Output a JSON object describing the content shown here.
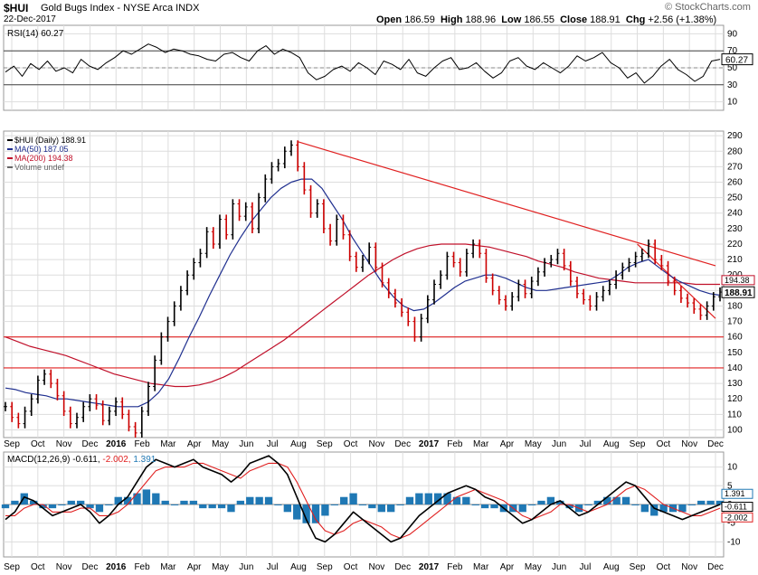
{
  "header": {
    "symbol": "$HUI",
    "name": "Gold Bugs Index - NYSE Arca INDX",
    "date": "22-Dec-2017",
    "source": "© StockCharts.com",
    "ohlc": [
      {
        "label": "Open",
        "value": "186.59"
      },
      {
        "label": "High",
        "value": "188.96"
      },
      {
        "label": "Low",
        "value": "186.55"
      },
      {
        "label": "Close",
        "value": "188.91"
      },
      {
        "label": "Chg",
        "value": "+2.56 (+1.38%)"
      }
    ]
  },
  "colors": {
    "price": "#000000",
    "down": "#cc0000",
    "ma50": "#1f2f8f",
    "ma200": "#c0102a",
    "trend": "#e02020",
    "macd_hist": "#1f78b4",
    "grid": "#dddddd"
  },
  "chart_data": [
    {
      "type": "line",
      "panel": "rsi",
      "title": "RSI(14) 60.27",
      "last_value_label": "60.27",
      "ylim": [
        0,
        100
      ],
      "yticks": [
        10,
        30,
        50,
        70,
        90
      ],
      "levels": [
        30,
        50,
        70
      ],
      "x_labels": [
        "Sep",
        "Oct",
        "Nov",
        "Dec",
        "2016",
        "Feb",
        "Mar",
        "Apr",
        "May",
        "Jun",
        "Jul",
        "Aug",
        "Sep",
        "Oct",
        "Nov",
        "Dec",
        "2017",
        "Feb",
        "Mar",
        "Apr",
        "May",
        "Jun",
        "Jul",
        "Aug",
        "Sep",
        "Oct",
        "Nov",
        "Dec"
      ],
      "series": [
        {
          "values": [
            45,
            52,
            40,
            55,
            48,
            58,
            46,
            50,
            44,
            60,
            52,
            48,
            56,
            62,
            70,
            66,
            72,
            78,
            74,
            68,
            72,
            70,
            66,
            64,
            60,
            58,
            66,
            68,
            62,
            58,
            70,
            76,
            66,
            72,
            68,
            62,
            44,
            36,
            40,
            48,
            52,
            46,
            56,
            50,
            42,
            58,
            54,
            48,
            60,
            44,
            40,
            50,
            58,
            62,
            48,
            50,
            56,
            46,
            38,
            44,
            58,
            62,
            52,
            48,
            56,
            50,
            44,
            52,
            64,
            58,
            62,
            68,
            56,
            50,
            38,
            44,
            32,
            40,
            52,
            60,
            48,
            42,
            34,
            40,
            58,
            60
          ]
        }
      ]
    },
    {
      "type": "bar",
      "panel": "price",
      "title": "$HUI (Daily) 188.91",
      "legend": [
        "$HUI (Daily) 188.91",
        "MA(50) 187.05",
        "MA(200) 194.38",
        "Volume undef"
      ],
      "ylim": [
        95,
        293
      ],
      "yticks": [
        100,
        110,
        120,
        130,
        140,
        150,
        160,
        170,
        180,
        190,
        200,
        210,
        220,
        230,
        240,
        250,
        260,
        270,
        280,
        290
      ],
      "x_labels": [
        "Sep",
        "Oct",
        "Nov",
        "Dec",
        "2016",
        "Feb",
        "Mar",
        "Apr",
        "May",
        "Jun",
        "Jul",
        "Aug",
        "Sep",
        "Oct",
        "Nov",
        "Dec",
        "2017",
        "Feb",
        "Mar",
        "Apr",
        "May",
        "Jun",
        "Jul",
        "Aug",
        "Sep",
        "Oct",
        "Nov",
        "Dec"
      ],
      "price_labels": [
        "194.38",
        "188.91"
      ],
      "series": [
        {
          "name": "$HUI (Daily) 188.91",
          "values": [
            115,
            108,
            104,
            112,
            120,
            132,
            136,
            130,
            122,
            112,
            104,
            108,
            115,
            120,
            116,
            106,
            112,
            118,
            110,
            102,
            98,
            112,
            128,
            145,
            160,
            170,
            180,
            190,
            200,
            208,
            214,
            228,
            220,
            236,
            226,
            246,
            238,
            244,
            230,
            250,
            262,
            270,
            272,
            280,
            284,
            270,
            255,
            240,
            246,
            230,
            222,
            236,
            226,
            212,
            205,
            210,
            218,
            205,
            195,
            188,
            182,
            176,
            170,
            160,
            172,
            184,
            194,
            200,
            212,
            208,
            202,
            214,
            220,
            214,
            198,
            190,
            184,
            180,
            186,
            194,
            188,
            196,
            202,
            208,
            210,
            214,
            206,
            196,
            188,
            184,
            180,
            186,
            190,
            194,
            200,
            205,
            208,
            212,
            214,
            220,
            210,
            206,
            196,
            190,
            185,
            182,
            178,
            174,
            180,
            186,
            189
          ]
        },
        {
          "name": "MA(50) 187.05",
          "values": [
            127,
            126,
            124,
            123,
            122,
            120,
            120,
            119,
            118,
            117,
            116,
            115,
            115,
            115,
            118,
            124,
            133,
            146,
            160,
            173,
            187,
            200,
            213,
            224,
            234,
            242,
            250,
            256,
            260,
            262,
            262,
            256,
            246,
            236,
            224,
            214,
            204,
            194,
            186,
            180,
            177,
            178,
            182,
            187,
            192,
            196,
            198,
            200,
            200,
            198,
            195,
            192,
            190,
            190,
            191,
            192,
            193,
            194,
            195,
            196,
            200,
            205,
            208,
            210,
            205,
            200,
            196,
            193,
            190,
            188,
            187
          ]
        },
        {
          "name": "MA(200) 194.38",
          "values": [
            160,
            157,
            154,
            152,
            150,
            148,
            145,
            142,
            139,
            136,
            134,
            132,
            130,
            129,
            128,
            128,
            129,
            131,
            134,
            138,
            143,
            148,
            153,
            158,
            164,
            170,
            176,
            182,
            188,
            194,
            200,
            205,
            210,
            214,
            217,
            219,
            220,
            220,
            220,
            219,
            218,
            216,
            214,
            212,
            209,
            207,
            205,
            202,
            200,
            198,
            197,
            196,
            195,
            195,
            195,
            195,
            195,
            194,
            194,
            194
          ]
        }
      ],
      "trendlines": [
        {
          "from": [
            "Aug 2016",
            286
          ],
          "to": [
            "Dec 2017",
            206
          ]
        },
        {
          "from": [
            "Sep 2017",
            220
          ],
          "to": [
            "Dec 2017",
            172
          ]
        }
      ],
      "support_levels": [
        160,
        140
      ]
    },
    {
      "type": "line",
      "panel": "macd",
      "title": "MACD(12,26,9)",
      "values_label": [
        "-0.611",
        "-2.002",
        "1.391"
      ],
      "last_value_labels": [
        "1.391",
        "-0.611",
        "-2.002"
      ],
      "ylim": [
        -14,
        14
      ],
      "yticks": [
        -10,
        -5,
        0,
        5,
        10
      ],
      "x_labels": [
        "Sep",
        "Oct",
        "Nov",
        "Dec",
        "2016",
        "Feb",
        "Mar",
        "Apr",
        "May",
        "Jun",
        "Jul",
        "Aug",
        "Sep",
        "Oct",
        "Nov",
        "Dec",
        "2017",
        "Feb",
        "Mar",
        "Apr",
        "May",
        "Jun",
        "Jul",
        "Aug",
        "Sep",
        "Oct",
        "Nov",
        "Dec"
      ],
      "series": [
        {
          "name": "MACD(12,26,9)",
          "values": [
            -4,
            -2,
            2,
            1,
            -1,
            -3,
            -2,
            -1,
            0,
            -2,
            -5,
            -3,
            0,
            2,
            6,
            10,
            12,
            11,
            10,
            11,
            12,
            10,
            9,
            8,
            6,
            8,
            11,
            12,
            13,
            11,
            8,
            2,
            -4,
            -9,
            -10,
            -8,
            -5,
            -2,
            -4,
            -6,
            -8,
            -10,
            -9,
            -6,
            -3,
            -1,
            1,
            3,
            4,
            5,
            4,
            2,
            1,
            -1,
            -3,
            -5,
            -4,
            -2,
            0,
            1,
            -1,
            -3,
            -2,
            0,
            2,
            4,
            6,
            5,
            2,
            -1,
            -2,
            -3,
            -4,
            -3,
            -2,
            -1,
            0
          ]
        },
        {
          "name": "Signal",
          "values": [
            -3,
            -3,
            -1,
            0,
            0,
            -2,
            -2,
            -2,
            -1,
            -1,
            -3,
            -3,
            -2,
            0,
            3,
            6,
            9,
            10,
            10,
            10,
            11,
            11,
            10,
            9,
            8,
            7,
            9,
            10,
            11,
            11,
            10,
            6,
            1,
            -4,
            -7,
            -8,
            -7,
            -5,
            -4,
            -5,
            -6,
            -8,
            -9,
            -8,
            -6,
            -4,
            -2,
            0,
            2,
            3,
            4,
            3,
            2,
            1,
            -1,
            -3,
            -4,
            -3,
            -2,
            0,
            0,
            -1,
            -2,
            -1,
            0,
            2,
            4,
            5,
            4,
            2,
            0,
            -1,
            -2,
            -3,
            -3,
            -2,
            -1
          ]
        },
        {
          "name": "Histogram",
          "values": [
            -1,
            1,
            3,
            1,
            -1,
            -1,
            0,
            1,
            1,
            -1,
            -2,
            0,
            2,
            2,
            3,
            4,
            3,
            1,
            0,
            1,
            1,
            -1,
            -1,
            -1,
            -2,
            1,
            2,
            2,
            2,
            0,
            -2,
            -4,
            -5,
            -5,
            -3,
            0,
            2,
            3,
            0,
            -1,
            -2,
            -2,
            0,
            2,
            3,
            3,
            3,
            3,
            2,
            2,
            0,
            -1,
            -1,
            -2,
            -2,
            -2,
            0,
            1,
            2,
            1,
            -1,
            -2,
            0,
            1,
            2,
            2,
            2,
            0,
            -2,
            -3,
            -2,
            -2,
            -2,
            0,
            1,
            1,
            1
          ]
        }
      ]
    }
  ]
}
